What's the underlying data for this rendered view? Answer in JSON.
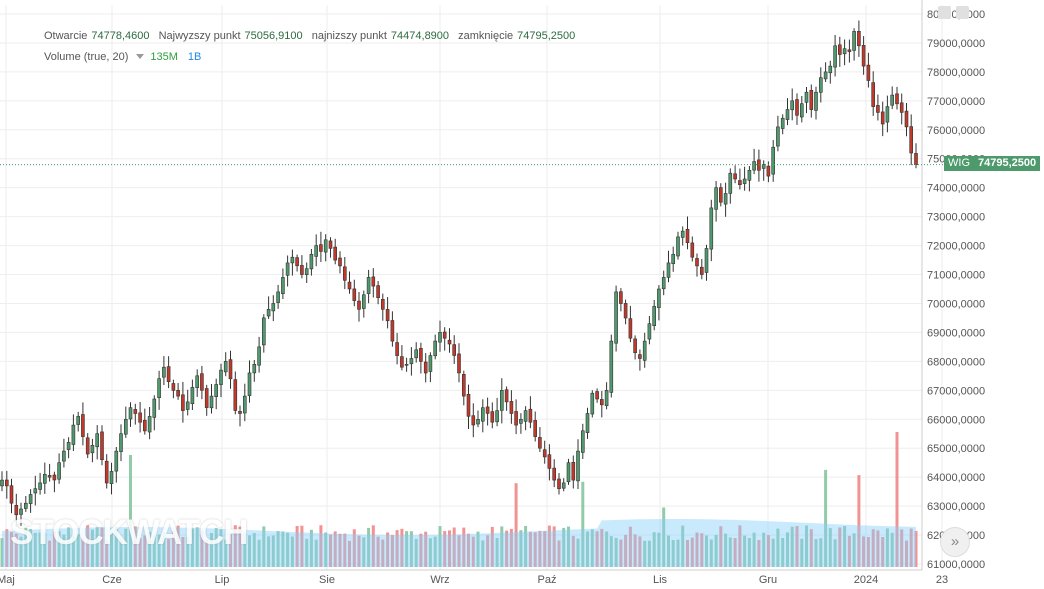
{
  "legend": {
    "open_label": "Otwarcie",
    "open_value": "74778,4600",
    "high_label": "Najwyzszy punkt",
    "high_value": "75056,9100",
    "low_label": "najnizszy punkt",
    "low_value": "74474,8900",
    "close_label": "zamknięcie",
    "close_value": "74795,2500",
    "volume_label": "Volume (true, 20)",
    "volume_value": "135M",
    "volume_value2": "1B"
  },
  "price_tag": {
    "name": "WIG",
    "value": "74795,2500"
  },
  "watermark": "STOCKWATCH",
  "colors": {
    "up": "#4e9a6c",
    "down": "#c0392b",
    "vol_up": "#7fc29b",
    "vol_down": "#f08080",
    "vol_ma": "#87cefa"
  },
  "chart_data": {
    "type": "candlestick",
    "y_ticks": [
      "80000,0000",
      "79000,0000",
      "78000,0000",
      "77000,0000",
      "76000,0000",
      "75000,0000",
      "74000,0000",
      "73000,0000",
      "72000,0000",
      "71000,0000",
      "70000,0000",
      "69000,0000",
      "68000,0000",
      "67000,0000",
      "66000,0000",
      "65000,0000",
      "64000,0000",
      "63000,0000",
      "62000,0000",
      "61000,0000"
    ],
    "x_ticks": [
      "Maj",
      "Cze",
      "Lip",
      "Sie",
      "Wrz",
      "Paź",
      "Lis",
      "Gru",
      "2024",
      "23"
    ],
    "ylim": [
      60900,
      80300
    ],
    "last_close": 74795.25,
    "closes": [
      63900,
      63700,
      63100,
      62700,
      62900,
      63100,
      63400,
      63600,
      63800,
      64100,
      64000,
      63900,
      64500,
      64900,
      65200,
      65800,
      66100,
      65400,
      64800,
      65100,
      65500,
      64600,
      63800,
      64200,
      64900,
      65500,
      66000,
      66400,
      66200,
      65900,
      65600,
      66100,
      66700,
      67400,
      67800,
      67300,
      67000,
      66800,
      66300,
      66600,
      67100,
      67500,
      67000,
      66400,
      66800,
      67200,
      67700,
      68000,
      67400,
      66300,
      66200,
      66800,
      67600,
      67900,
      68500,
      69500,
      69800,
      70000,
      70400,
      70900,
      71400,
      71600,
      71300,
      71000,
      71200,
      71700,
      72000,
      71800,
      72200,
      71900,
      71500,
      71300,
      70800,
      70500,
      70100,
      69800,
      70300,
      70900,
      70600,
      70200,
      69800,
      69400,
      68700,
      68200,
      67800,
      67900,
      68100,
      68400,
      68000,
      67600,
      68200,
      68700,
      69000,
      68800,
      68600,
      68200,
      67600,
      66800,
      66100,
      65800,
      66000,
      66400,
      66200,
      65900,
      66300,
      67000,
      66600,
      66200,
      65800,
      66000,
      66300,
      65900,
      65400,
      65000,
      64700,
      64300,
      63900,
      63600,
      63800,
      64500,
      63900,
      64900,
      65600,
      66200,
      66900,
      66700,
      66500,
      67000,
      68700,
      70400,
      70000,
      69500,
      68800,
      68300,
      68100,
      68700,
      69300,
      69900,
      70500,
      70900,
      71400,
      71700,
      72300,
      72500,
      72100,
      71600,
      71300,
      71000,
      71900,
      73300,
      74000,
      73500,
      73800,
      74500,
      74300,
      74100,
      74300,
      74600,
      74900,
      74600,
      74800,
      74400,
      75400,
      76100,
      76400,
      76700,
      77000,
      76500,
      76900,
      77300,
      76700,
      77300,
      77800,
      78000,
      78200,
      78900,
      78600,
      78800,
      78700,
      79400,
      78900,
      78200,
      77700,
      76800,
      76600,
      76200,
      76800,
      77200,
      76900,
      76600,
      76100,
      75200,
      74795
    ]
  }
}
